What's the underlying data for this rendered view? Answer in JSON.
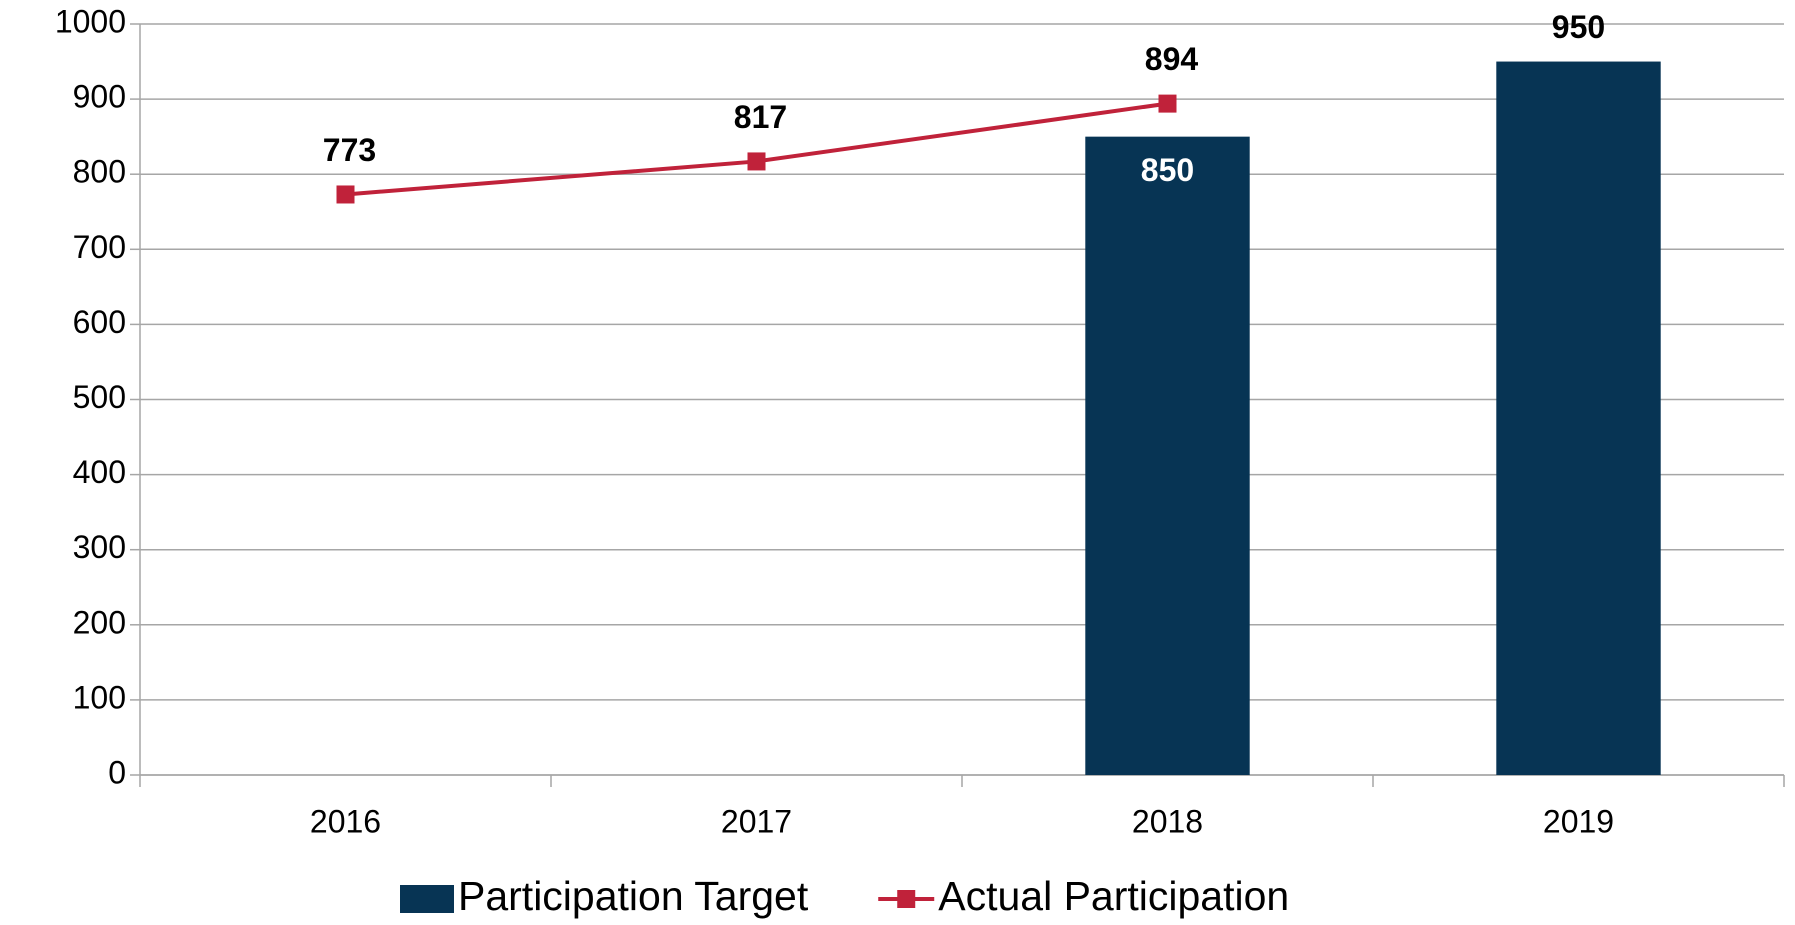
{
  "chart_data": {
    "type": "bar",
    "categories": [
      "2016",
      "2017",
      "2018",
      "2019"
    ],
    "series": [
      {
        "name": "Participation Target",
        "type": "bar",
        "color": "#073454",
        "values": [
          null,
          null,
          850,
          950
        ]
      },
      {
        "name": "Actual Participation",
        "type": "line",
        "color": "#c0223a",
        "values": [
          773,
          817,
          894,
          null
        ]
      }
    ],
    "ylim": [
      0,
      1000
    ],
    "yticks": [
      0,
      100,
      200,
      300,
      400,
      500,
      600,
      700,
      800,
      900,
      1000
    ],
    "grid": true,
    "legend": "bottom"
  }
}
